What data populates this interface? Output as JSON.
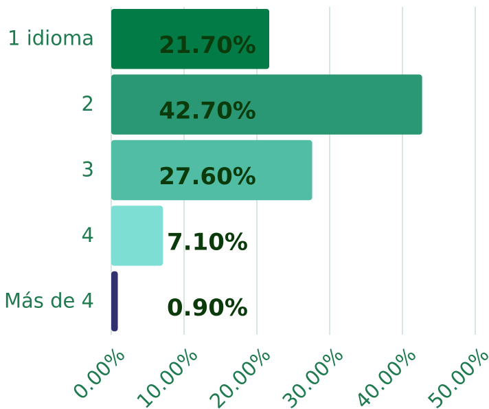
{
  "chart_data": {
    "type": "bar",
    "orientation": "horizontal",
    "categories": [
      "1 idioma",
      "2",
      "3",
      "4",
      "Más de 4"
    ],
    "values": [
      21.7,
      42.7,
      27.6,
      7.1,
      0.9
    ],
    "value_labels": [
      "21.70%",
      "42.70%",
      "27.60%",
      "7.10%",
      "0.90%"
    ],
    "colors": [
      "#037b46",
      "#2a9874",
      "#50bda4",
      "#7ddfd3",
      "#32316e"
    ],
    "xlim": [
      0,
      50
    ],
    "xticks": [
      {
        "value": 0,
        "label": "0.00%"
      },
      {
        "value": 10,
        "label": "10.00%"
      },
      {
        "value": 20,
        "label": "20.00%"
      },
      {
        "value": 30,
        "label": "30.00%"
      },
      {
        "value": 40,
        "label": "40.00%"
      },
      {
        "value": 50,
        "label": "50.00%"
      }
    ],
    "grid": true
  }
}
